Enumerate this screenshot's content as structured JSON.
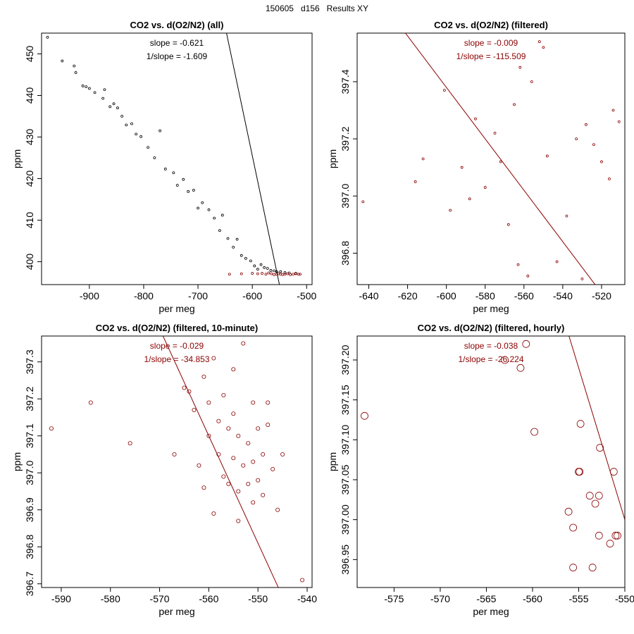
{
  "page_title": "150605   d156   Results XY",
  "colors": {
    "all": "#000000",
    "filtered": "#8b0000"
  },
  "chart_data": [
    {
      "type": "scatter",
      "title": "CO2 vs. d(O2/N2) (all)",
      "xlabel": "per meg",
      "ylabel": "ppm",
      "xlim": [
        -988,
        -490
      ],
      "ylim": [
        394.5,
        455
      ],
      "xticks": [
        -900,
        -800,
        -700,
        -600,
        -500
      ],
      "yticks": [
        400,
        410,
        420,
        430,
        440,
        450
      ],
      "annotations": [
        "slope = -0.621",
        "1/slope = -1.609"
      ],
      "fit": {
        "slope": -0.621,
        "intercept": 52.9
      },
      "series": [
        {
          "name": "all",
          "color": "#000000",
          "points": [
            [
              -977,
              454.0
            ],
            [
              -950,
              448.3
            ],
            [
              -928,
              447.1
            ],
            [
              -925,
              445.5
            ],
            [
              -912,
              442.3
            ],
            [
              -906,
              442.1
            ],
            [
              -900,
              441.7
            ],
            [
              -890,
              440.7
            ],
            [
              -875,
              439.3
            ],
            [
              -872,
              441.4
            ],
            [
              -862,
              437.3
            ],
            [
              -855,
              438.0
            ],
            [
              -848,
              437.0
            ],
            [
              -840,
              435.0
            ],
            [
              -832,
              432.9
            ],
            [
              -822,
              433.2
            ],
            [
              -814,
              430.7
            ],
            [
              -805,
              430.1
            ],
            [
              -792,
              427.5
            ],
            [
              -780,
              425.0
            ],
            [
              -770,
              431.5
            ],
            [
              -760,
              422.3
            ],
            [
              -745,
              421.4
            ],
            [
              -738,
              418.4
            ],
            [
              -727,
              419.8
            ],
            [
              -718,
              416.9
            ],
            [
              -708,
              417.2
            ],
            [
              -700,
              412.9
            ],
            [
              -692,
              414.2
            ],
            [
              -680,
              412.5
            ],
            [
              -670,
              410.5
            ],
            [
              -660,
              407.5
            ],
            [
              -655,
              411.2
            ],
            [
              -645,
              405.6
            ],
            [
              -635,
              403.5
            ],
            [
              -628,
              405.4
            ],
            [
              -620,
              401.5
            ],
            [
              -612,
              400.8
            ],
            [
              -603,
              400.2
            ],
            [
              -596,
              399.0
            ],
            [
              -590,
              398.2
            ],
            [
              -584,
              399.3
            ],
            [
              -578,
              398.6
            ],
            [
              -572,
              398.4
            ],
            [
              -566,
              397.9
            ],
            [
              -560,
              397.8
            ],
            [
              -555,
              397.6
            ],
            [
              -548,
              397.6
            ],
            [
              -540,
              397.4
            ],
            [
              -532,
              397.3
            ],
            [
              -520,
              397.2
            ]
          ]
        },
        {
          "name": "filtered",
          "color": "#8b0000",
          "points": [
            [
              -642,
              397.0
            ],
            [
              -620,
              397.1
            ],
            [
              -600,
              397.2
            ],
            [
              -590,
              397.1
            ],
            [
              -582,
              397.2
            ],
            [
              -575,
              397.0
            ],
            [
              -570,
              397.3
            ],
            [
              -565,
              397.1
            ],
            [
              -560,
              396.9
            ],
            [
              -556,
              397.0
            ],
            [
              -552,
              397.1
            ],
            [
              -548,
              397.0
            ],
            [
              -544,
              396.9
            ],
            [
              -540,
              397.0
            ],
            [
              -535,
              397.1
            ],
            [
              -530,
              396.9
            ],
            [
              -525,
              397.0
            ],
            [
              -520,
              397.1
            ],
            [
              -515,
              397.0
            ],
            [
              -512,
              397.0
            ]
          ]
        }
      ]
    },
    {
      "type": "scatter",
      "title": "CO2 vs. d(O2/N2) (filtered)",
      "xlabel": "per meg",
      "ylabel": "ppm",
      "xlim": [
        -646,
        -508
      ],
      "ylim": [
        396.69,
        397.57
      ],
      "xticks": [
        -640,
        -620,
        -600,
        -580,
        -560,
        -540,
        -520
      ],
      "yticks": [
        396.8,
        397.0,
        397.2,
        397.4
      ],
      "annotations": [
        "slope = -0.009",
        "1/slope = -115.509"
      ],
      "fit": {
        "slope": -0.009,
        "intercept": 391.98
      },
      "series": [
        {
          "name": "filtered",
          "color": "#8b0000",
          "points": [
            [
              -643,
              396.98
            ],
            [
              -616,
              397.05
            ],
            [
              -612,
              397.13
            ],
            [
              -601,
              397.37
            ],
            [
              -598,
              396.95
            ],
            [
              -592,
              397.1
            ],
            [
              -588,
              396.99
            ],
            [
              -585,
              397.27
            ],
            [
              -580,
              397.03
            ],
            [
              -575,
              397.22
            ],
            [
              -572,
              397.12
            ],
            [
              -568,
              396.9
            ],
            [
              -565,
              397.32
            ],
            [
              -562,
              397.45
            ],
            [
              -558,
              396.72
            ],
            [
              -556,
              397.4
            ],
            [
              -552,
              397.54
            ],
            [
              -550,
              397.52
            ],
            [
              -548,
              397.14
            ],
            [
              -543,
              396.77
            ],
            [
              -538,
              396.93
            ],
            [
              -533,
              397.2
            ],
            [
              -528,
              397.25
            ],
            [
              -524,
              397.18
            ],
            [
              -520,
              397.12
            ],
            [
              -516,
              397.06
            ],
            [
              -514,
              397.3
            ],
            [
              -511,
              397.26
            ],
            [
              -530,
              396.71
            ],
            [
              -563,
              396.76
            ]
          ]
        }
      ]
    },
    {
      "type": "scatter",
      "title": "CO2 vs. d(O2/N2) (filtered, 10-minute)",
      "xlabel": "per meg",
      "ylabel": "ppm",
      "xlim": [
        -594,
        -539
      ],
      "ylim": [
        396.69,
        397.37
      ],
      "xticks": [
        -590,
        -580,
        -570,
        -560,
        -550,
        -540
      ],
      "yticks": [
        396.7,
        396.8,
        396.9,
        397.0,
        397.1,
        397.2,
        397.3
      ],
      "annotations": [
        "slope = -0.029",
        "1/slope = -34.853"
      ],
      "fit": {
        "slope": -0.029,
        "intercept": 380.86
      },
      "series": [
        {
          "name": "10-minute",
          "color": "#8b0000",
          "points": [
            [
              -592,
              397.12
            ],
            [
              -584,
              397.19
            ],
            [
              -576,
              397.08
            ],
            [
              -567,
              397.05
            ],
            [
              -565,
              397.23
            ],
            [
              -564,
              397.22
            ],
            [
              -563,
              397.17
            ],
            [
              -562,
              397.02
            ],
            [
              -561,
              397.26
            ],
            [
              -561,
              396.96
            ],
            [
              -560,
              397.19
            ],
            [
              -560,
              397.1
            ],
            [
              -559,
              396.89
            ],
            [
              -559,
              397.31
            ],
            [
              -558,
              397.14
            ],
            [
              -558,
              397.05
            ],
            [
              -557,
              396.99
            ],
            [
              -557,
              397.21
            ],
            [
              -556,
              397.12
            ],
            [
              -556,
              396.97
            ],
            [
              -555,
              397.16
            ],
            [
              -555,
              397.04
            ],
            [
              -555,
              397.28
            ],
            [
              -554,
              396.95
            ],
            [
              -554,
              397.1
            ],
            [
              -554,
              396.87
            ],
            [
              -553,
              397.02
            ],
            [
              -553,
              397.35
            ],
            [
              -552,
              396.97
            ],
            [
              -552,
              397.08
            ],
            [
              -551,
              397.19
            ],
            [
              -551,
              396.92
            ],
            [
              -551,
              397.03
            ],
            [
              -550,
              397.12
            ],
            [
              -550,
              396.98
            ],
            [
              -549,
              397.05
            ],
            [
              -549,
              396.94
            ],
            [
              -548,
              397.13
            ],
            [
              -548,
              397.19
            ],
            [
              -547,
              397.01
            ],
            [
              -546,
              396.9
            ],
            [
              -545,
              397.05
            ],
            [
              -541,
              396.71
            ]
          ]
        }
      ]
    },
    {
      "type": "scatter",
      "title": "CO2 vs. d(O2/N2) (filtered, hourly)",
      "xlabel": "per meg",
      "ylabel": "ppm",
      "xlim": [
        -579,
        -550
      ],
      "ylim": [
        396.915,
        397.23
      ],
      "xticks": [
        -575,
        -570,
        -565,
        -560,
        -555,
        -550
      ],
      "yticks": [
        396.95,
        397.0,
        397.05,
        397.1,
        397.15,
        397.2
      ],
      "annotations": [
        "slope = -0.038",
        "1/slope = -26.224"
      ],
      "fit": {
        "slope": -0.038,
        "intercept": 376.1
      },
      "series": [
        {
          "name": "hourly",
          "color": "#8b0000",
          "points": [
            [
              -578.2,
              397.13
            ],
            [
              -563.0,
              397.2
            ],
            [
              -561.3,
              397.19
            ],
            [
              -560.7,
              397.22
            ],
            [
              -559.8,
              397.11
            ],
            [
              -556.1,
              397.01
            ],
            [
              -555.6,
              396.99
            ],
            [
              -555.6,
              396.94
            ],
            [
              -555.0,
              397.06
            ],
            [
              -554.9,
              397.06
            ],
            [
              -554.8,
              397.12
            ],
            [
              -553.8,
              397.03
            ],
            [
              -553.5,
              396.94
            ],
            [
              -553.2,
              397.02
            ],
            [
              -552.8,
              397.03
            ],
            [
              -552.8,
              396.98
            ],
            [
              -552.7,
              397.09
            ],
            [
              -551.6,
              396.97
            ],
            [
              -551.2,
              397.06
            ],
            [
              -551.0,
              396.98
            ],
            [
              -550.8,
              396.98
            ]
          ]
        }
      ]
    }
  ]
}
